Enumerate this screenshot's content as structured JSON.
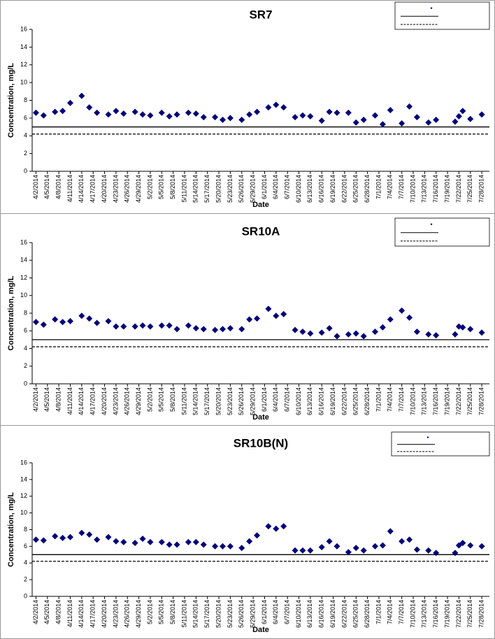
{
  "chart_data": [
    {
      "type": "scatter",
      "title": "SR7",
      "x_label": "Date",
      "y_label": "Concentration, mg/L",
      "color": "#000080",
      "marker": "diamond",
      "xlim": [
        "4/1/2014",
        "7/30/2014"
      ],
      "ylim": [
        0,
        16
      ],
      "yticks": [
        0,
        2,
        4,
        6,
        8,
        10,
        12,
        14,
        16
      ],
      "xticks": [
        "4/2/2014",
        "4/5/2014",
        "4/8/2014",
        "4/11/2014",
        "4/14/2014",
        "4/17/2014",
        "4/20/2014",
        "4/23/2014",
        "4/26/2014",
        "4/29/2014",
        "5/2/2014",
        "5/5/2014",
        "5/8/2014",
        "5/11/2014",
        "5/14/2014",
        "5/17/2014",
        "5/20/2014",
        "5/23/2014",
        "5/26/2014",
        "5/29/2014",
        "6/1/2014",
        "6/4/2014",
        "6/7/2014",
        "6/10/2014",
        "6/13/2014",
        "6/16/2014",
        "6/19/2014",
        "6/22/2014",
        "6/25/2014",
        "6/28/2014",
        "7/1/2014",
        "7/4/2014",
        "7/7/2014",
        "7/10/2014",
        "7/13/2014",
        "7/16/2014",
        "7/19/2014",
        "7/22/2014",
        "7/25/2014",
        "7/28/2014"
      ],
      "x": [
        "4/2/2014",
        "4/4/2014",
        "4/7/2014",
        "4/9/2014",
        "4/11/2014",
        "4/14/2014",
        "4/16/2014",
        "4/18/2014",
        "4/21/2014",
        "4/23/2014",
        "4/25/2014",
        "4/28/2014",
        "4/30/2014",
        "5/2/2014",
        "5/5/2014",
        "5/7/2014",
        "5/9/2014",
        "5/12/2014",
        "5/14/2014",
        "5/16/2014",
        "5/19/2014",
        "5/21/2014",
        "5/23/2014",
        "5/26/2014",
        "5/28/2014",
        "5/30/2014",
        "6/2/2014",
        "6/4/2014",
        "6/6/2014",
        "6/9/2014",
        "6/11/2014",
        "6/13/2014",
        "6/16/2014",
        "6/18/2014",
        "6/20/2014",
        "6/23/2014",
        "6/25/2014",
        "6/27/2014",
        "6/30/2014",
        "7/2/2014",
        "7/4/2014",
        "7/7/2014",
        "7/9/2014",
        "7/11/2014",
        "7/14/2014",
        "7/16/2014",
        "7/21/2014",
        "7/22/2014",
        "7/23/2014",
        "7/25/2014",
        "7/28/2014"
      ],
      "values": [
        6.6,
        6.3,
        6.7,
        6.8,
        7.7,
        8.5,
        7.2,
        6.6,
        6.4,
        6.8,
        6.5,
        6.7,
        6.4,
        6.3,
        6.6,
        6.2,
        6.4,
        6.6,
        6.5,
        6.1,
        6.1,
        5.8,
        6.0,
        5.8,
        6.4,
        6.7,
        7.2,
        7.5,
        7.2,
        6.1,
        6.3,
        6.2,
        5.7,
        6.7,
        6.6,
        6.6,
        5.5,
        5.8,
        6.3,
        5.3,
        6.9,
        5.4,
        7.3,
        6.1,
        5.5,
        5.8,
        5.6,
        6.2,
        6.8,
        5.9,
        6.4
      ],
      "reference_lines": [
        {
          "value": 5,
          "style": "solid"
        },
        {
          "value": 4.2,
          "style": "dashed"
        }
      ]
    },
    {
      "type": "scatter",
      "title": "SR10A",
      "x_label": "Date",
      "y_label": "Concentration, mg/L",
      "color": "#000080",
      "marker": "diamond",
      "xlim": [
        "4/1/2014",
        "7/30/2014"
      ],
      "ylim": [
        0,
        16
      ],
      "yticks": [
        0,
        2,
        4,
        6,
        8,
        10,
        12,
        14,
        16
      ],
      "xticks": [
        "4/2/2014",
        "4/5/2014",
        "4/8/2014",
        "4/11/2014",
        "4/14/2014",
        "4/17/2014",
        "4/20/2014",
        "4/23/2014",
        "4/26/2014",
        "4/29/2014",
        "5/2/2014",
        "5/5/2014",
        "5/8/2014",
        "5/11/2014",
        "5/14/2014",
        "5/17/2014",
        "5/20/2014",
        "5/23/2014",
        "5/26/2014",
        "5/29/2014",
        "6/1/2014",
        "6/4/2014",
        "6/7/2014",
        "6/10/2014",
        "6/13/2014",
        "6/16/2014",
        "6/19/2014",
        "6/22/2014",
        "6/25/2014",
        "6/28/2014",
        "7/1/2014",
        "7/4/2014",
        "7/7/2014",
        "7/10/2014",
        "7/13/2014",
        "7/16/2014",
        "7/19/2014",
        "7/22/2014",
        "7/25/2014",
        "7/28/2014"
      ],
      "x": [
        "4/2/2014",
        "4/4/2014",
        "4/7/2014",
        "4/9/2014",
        "4/11/2014",
        "4/14/2014",
        "4/16/2014",
        "4/18/2014",
        "4/21/2014",
        "4/23/2014",
        "4/25/2014",
        "4/28/2014",
        "4/30/2014",
        "5/2/2014",
        "5/5/2014",
        "5/7/2014",
        "5/9/2014",
        "5/12/2014",
        "5/14/2014",
        "5/16/2014",
        "5/19/2014",
        "5/21/2014",
        "5/23/2014",
        "5/26/2014",
        "5/28/2014",
        "5/30/2014",
        "6/2/2014",
        "6/4/2014",
        "6/6/2014",
        "6/9/2014",
        "6/11/2014",
        "6/13/2014",
        "6/16/2014",
        "6/18/2014",
        "6/20/2014",
        "6/23/2014",
        "6/25/2014",
        "6/27/2014",
        "6/30/2014",
        "7/2/2014",
        "7/4/2014",
        "7/7/2014",
        "7/9/2014",
        "7/11/2014",
        "7/14/2014",
        "7/16/2014",
        "7/21/2014",
        "7/22/2014",
        "7/23/2014",
        "7/25/2014",
        "7/28/2014"
      ],
      "values": [
        7.0,
        6.7,
        7.3,
        7.0,
        7.1,
        7.7,
        7.4,
        6.9,
        7.1,
        6.5,
        6.5,
        6.5,
        6.6,
        6.5,
        6.6,
        6.6,
        6.2,
        6.6,
        6.3,
        6.2,
        6.1,
        6.2,
        6.3,
        6.2,
        7.3,
        7.4,
        8.5,
        7.7,
        7.9,
        6.1,
        5.9,
        5.7,
        5.8,
        6.3,
        5.4,
        5.6,
        5.7,
        5.4,
        5.9,
        6.4,
        7.3,
        8.3,
        7.5,
        5.9,
        5.6,
        5.5,
        5.6,
        6.5,
        6.4,
        6.2,
        5.8
      ],
      "reference_lines": [
        {
          "value": 5,
          "style": "solid"
        },
        {
          "value": 4.2,
          "style": "dashed"
        }
      ]
    },
    {
      "type": "scatter",
      "title": "SR10B(N)",
      "x_label": "Date",
      "y_label": "Concentration, mg/L",
      "color": "#000080",
      "marker": "diamond",
      "xlim": [
        "4/1/2014",
        "7/30/2014"
      ],
      "ylim": [
        0,
        16
      ],
      "yticks": [
        0,
        2,
        4,
        6,
        8,
        10,
        12,
        14,
        16
      ],
      "xticks": [
        "4/2/2014",
        "4/5/2014",
        "4/8/2014",
        "4/11/2014",
        "4/14/2014",
        "4/17/2014",
        "4/20/2014",
        "4/23/2014",
        "4/26/2014",
        "4/29/2014",
        "5/2/2014",
        "5/5/2014",
        "5/8/2014",
        "5/11/2014",
        "5/14/2014",
        "5/17/2014",
        "5/20/2014",
        "5/23/2014",
        "5/26/2014",
        "5/29/2014",
        "6/1/2014",
        "6/4/2014",
        "6/7/2014",
        "6/10/2014",
        "6/13/2014",
        "6/16/2014",
        "6/19/2014",
        "6/22/2014",
        "6/25/2014",
        "6/28/2014",
        "7/1/2014",
        "7/4/2014",
        "7/7/2014",
        "7/10/2014",
        "7/13/2014",
        "7/16/2014",
        "7/19/2014",
        "7/22/2014",
        "7/25/2014",
        "7/28/2014"
      ],
      "x": [
        "4/2/2014",
        "4/4/2014",
        "4/7/2014",
        "4/9/2014",
        "4/11/2014",
        "4/14/2014",
        "4/16/2014",
        "4/18/2014",
        "4/21/2014",
        "4/23/2014",
        "4/25/2014",
        "4/28/2014",
        "4/30/2014",
        "5/2/2014",
        "5/5/2014",
        "5/7/2014",
        "5/9/2014",
        "5/12/2014",
        "5/14/2014",
        "5/16/2014",
        "5/19/2014",
        "5/21/2014",
        "5/23/2014",
        "5/26/2014",
        "5/28/2014",
        "5/30/2014",
        "6/2/2014",
        "6/4/2014",
        "6/6/2014",
        "6/9/2014",
        "6/11/2014",
        "6/13/2014",
        "6/16/2014",
        "6/18/2014",
        "6/20/2014",
        "6/23/2014",
        "6/25/2014",
        "6/27/2014",
        "6/30/2014",
        "7/2/2014",
        "7/4/2014",
        "7/7/2014",
        "7/9/2014",
        "7/11/2014",
        "7/14/2014",
        "7/16/2014",
        "7/21/2014",
        "7/22/2014",
        "7/23/2014",
        "7/25/2014",
        "7/28/2014"
      ],
      "values": [
        6.8,
        6.7,
        7.2,
        7.0,
        7.1,
        7.6,
        7.4,
        6.8,
        7.1,
        6.6,
        6.5,
        6.4,
        6.9,
        6.5,
        6.5,
        6.2,
        6.2,
        6.5,
        6.5,
        6.2,
        6.0,
        6.0,
        6.0,
        5.8,
        6.6,
        7.3,
        8.4,
        8.1,
        8.4,
        5.5,
        5.5,
        5.5,
        5.9,
        6.6,
        6.0,
        5.3,
        5.8,
        5.5,
        6.0,
        6.1,
        7.8,
        6.6,
        6.8,
        5.6,
        5.5,
        5.2,
        5.2,
        6.1,
        6.4,
        6.1,
        6.0
      ],
      "reference_lines": [
        {
          "value": 5,
          "style": "solid"
        },
        {
          "value": 4.2,
          "style": "dashed"
        }
      ]
    }
  ]
}
